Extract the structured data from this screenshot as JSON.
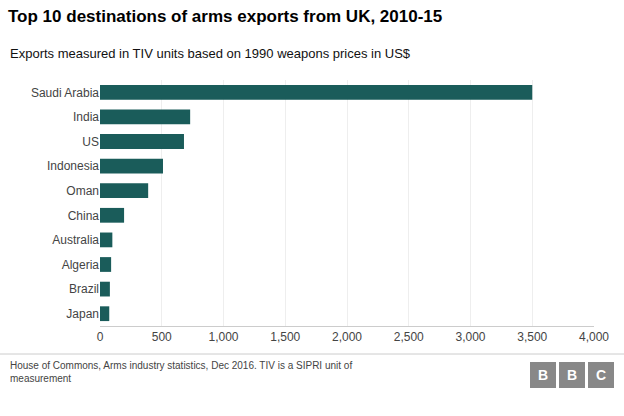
{
  "chart_data": {
    "type": "bar",
    "orientation": "horizontal",
    "title": "Top 10 destinations of arms exports from UK, 2010-15",
    "subtitle": "Exports measured in TIV units based on 1990 weapons prices in US$",
    "annotations": [
      "House of Commons, Arms industry statistics, Dec 2016. TIV is a SIPRI unit of\nmeasurement",
      "BBC"
    ],
    "categories": [
      "Saudi Arabia",
      "India",
      "US",
      "Indonesia",
      "Oman",
      "China",
      "Australia",
      "Algeria",
      "Brazil",
      "Japan"
    ],
    "values": [
      3500,
      730,
      680,
      510,
      390,
      195,
      100,
      90,
      80,
      75
    ],
    "color": "#1a5c5a",
    "xlim": [
      0,
      4000
    ],
    "xticks": [
      0,
      500,
      {
        "value": 1000,
        "label": "1,000"
      },
      {
        "value": 1500,
        "label": "1,500"
      },
      {
        "value": 2000,
        "label": "2,000"
      },
      {
        "value": 2500,
        "label": "2,500"
      },
      {
        "value": 3000,
        "label": "3,000"
      },
      {
        "value": 3500,
        "label": "3,500"
      },
      {
        "value": 4000,
        "label": "4,000"
      }
    ],
    "grid": true
  }
}
